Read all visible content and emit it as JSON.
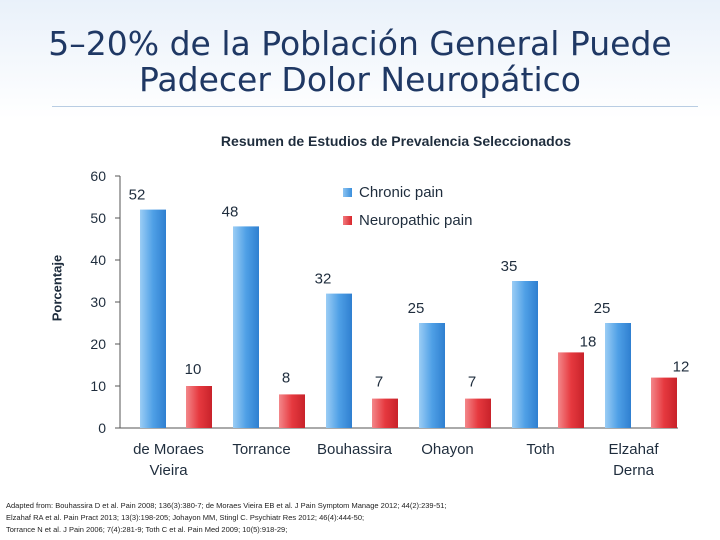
{
  "title": {
    "line1": "5–20% de la Población General Puede",
    "line2": "Padecer Dolor Neuropático"
  },
  "colors": {
    "chronic": "#4f9fe3",
    "neuropathic": "#e8383e",
    "axis": "#555555",
    "text": "#1f2d3d"
  },
  "chart_data": {
    "type": "bar",
    "title": "Resumen de Estudios de Prevalencia Seleccionados",
    "ylabel": "Porcentaje",
    "xlabel": "",
    "ylim": [
      0,
      60
    ],
    "yticks": [
      0,
      10,
      20,
      30,
      40,
      50,
      60
    ],
    "categories": [
      "de Moraes Vieira",
      "Torrance",
      "Bouhassira",
      "Ohayon",
      "Toth",
      "Elzahaf Derna"
    ],
    "category_lines": [
      [
        "de Moraes",
        "Vieira"
      ],
      [
        "Torrance"
      ],
      [
        "Bouhassira"
      ],
      [
        "Ohayon"
      ],
      [
        "Toth"
      ],
      [
        "Elzahaf",
        "Derna"
      ]
    ],
    "series": [
      {
        "name": "Chronic pain",
        "values": [
          52,
          48,
          32,
          25,
          35,
          25
        ]
      },
      {
        "name": "Neuropathic pain",
        "values": [
          10,
          8,
          7,
          7,
          18,
          12
        ]
      }
    ],
    "legend": [
      "Chronic pain",
      "Neuropathic pain"
    ],
    "legend_position": "top-right"
  },
  "footnote": {
    "line1": "Adapted from: Bouhassira D et al. Pain 2008; 136(3):380-7; de Moraes Vieira EB et al. J Pain Symptom Manage 2012; 44(2):239-51;",
    "line2": "Elzahaf RA et al. Pain Pract 2013; 13(3):198-205; Johayon MM, Stingl C. Psychiatr Res 2012; 46(4):444-50;",
    "line3": "Torrance N et al. J Pain 2006; 7(4):281-9; Toth C et al. Pain Med 2009; 10(5):918-29;"
  }
}
